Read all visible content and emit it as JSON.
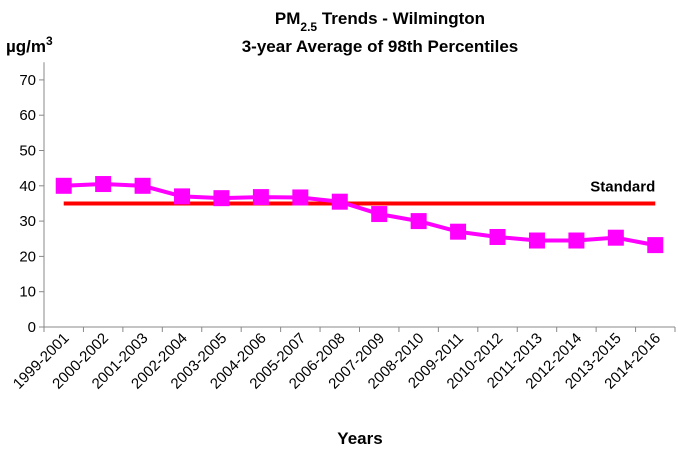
{
  "chart_data": {
    "type": "line",
    "title": [
      "PM",
      "2.5",
      " Trends  - Wilmington"
    ],
    "subtitle": "3-year Average of 98th Percentiles",
    "y_label": [
      "µg/m",
      "3"
    ],
    "x_label": "Years",
    "categories": [
      "1999-2001",
      "2000-2002",
      "2001-2003",
      "2002-2004",
      "2003-2005",
      "2004-2006",
      "2005-2007",
      "2006-2008",
      "2007-2009",
      "2008-2010",
      "2009-2011",
      "2010-2012",
      "2011-2013",
      "2012-2014",
      "2013-2015",
      "2014-2016"
    ],
    "values": [
      40,
      40.5,
      40,
      37,
      36.5,
      36.8,
      36.7,
      35.5,
      32,
      30,
      27,
      25.5,
      24.5,
      24.5,
      25.3,
      23.2
    ],
    "color": "#ff00ff",
    "reference_line": {
      "value": 35,
      "label": "Standard",
      "color": "#ff0000"
    },
    "ylim": [
      0,
      75
    ],
    "yticks": [
      0,
      10,
      20,
      30,
      40,
      50,
      60,
      70
    ],
    "grid": false
  }
}
